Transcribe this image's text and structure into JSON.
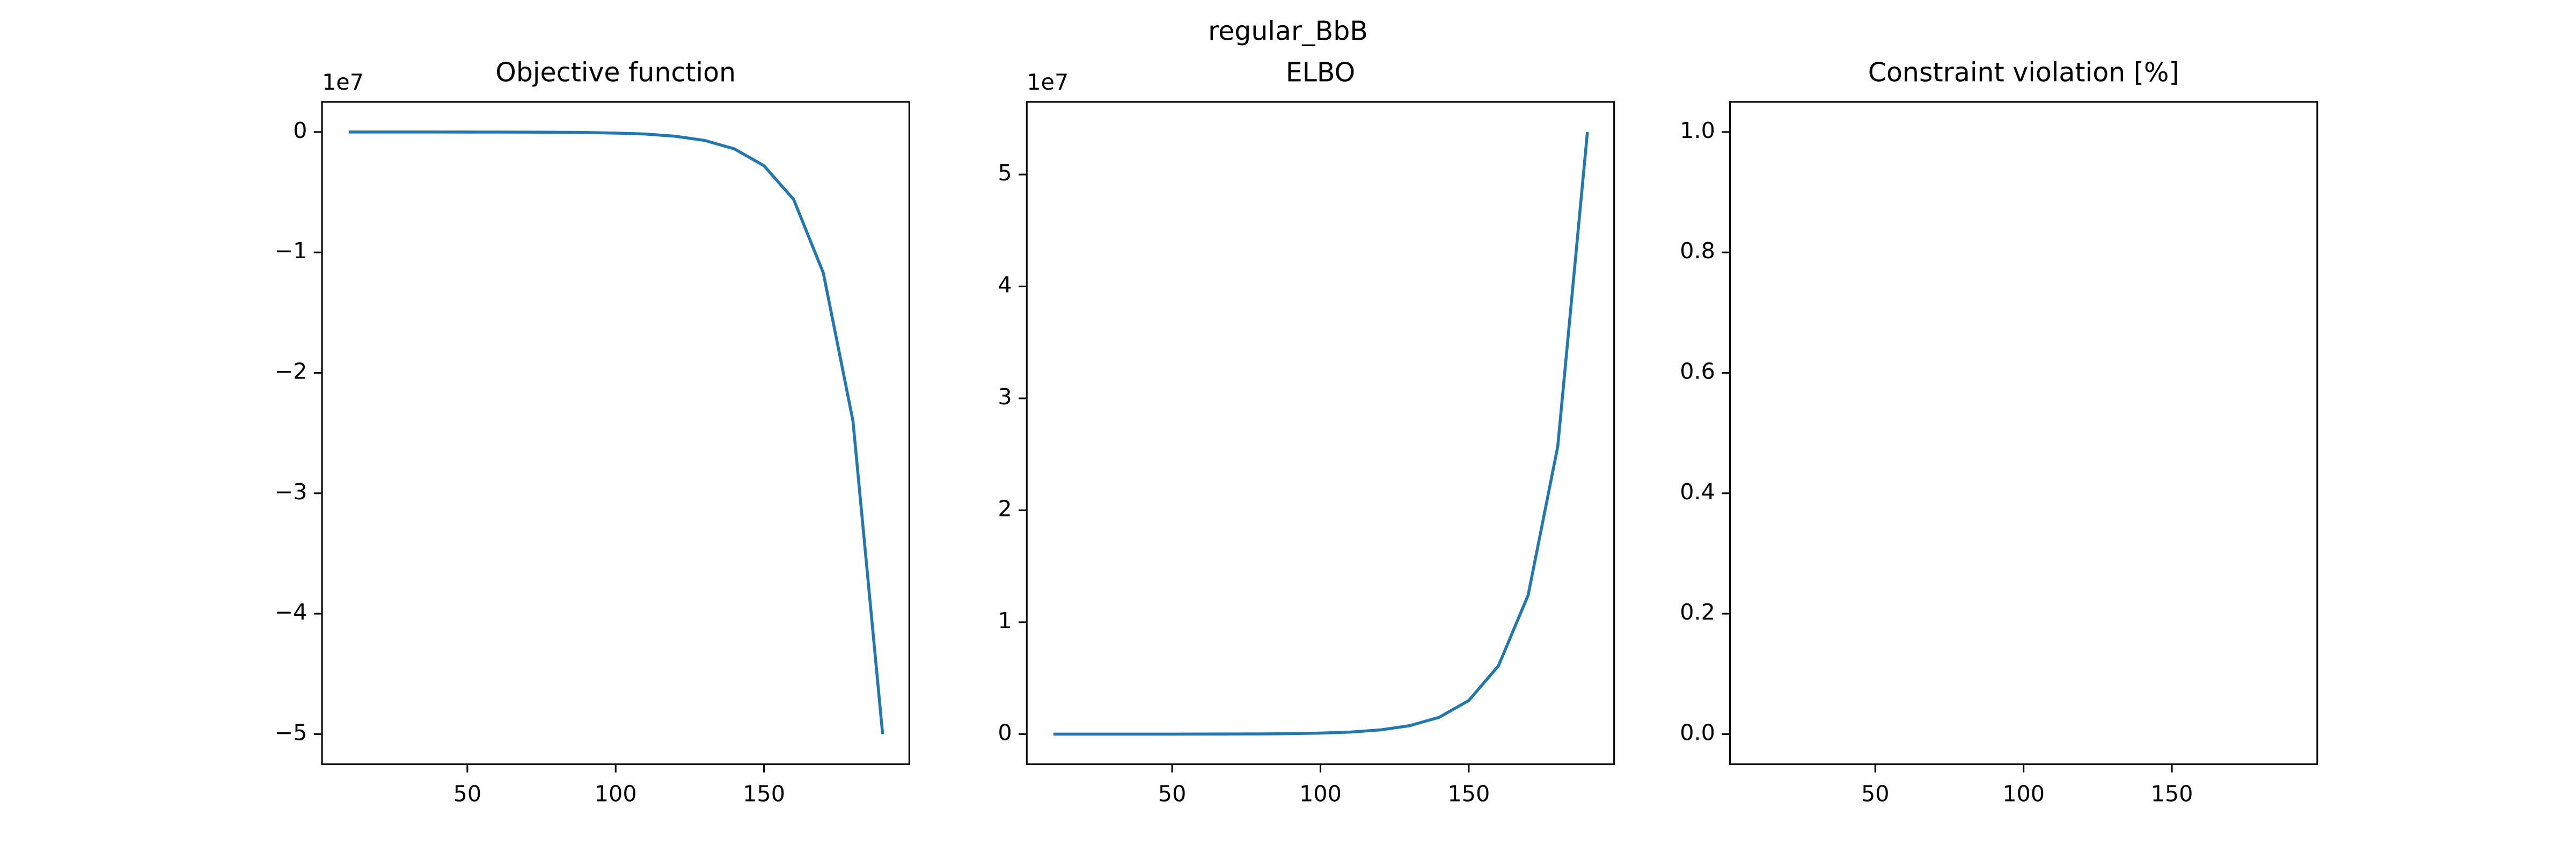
{
  "figure_title": "regular_BbB",
  "chart_data": [
    {
      "type": "line",
      "title": "Objective function",
      "y_offset_label": "1e7",
      "x": [
        10,
        20,
        30,
        40,
        50,
        60,
        70,
        80,
        90,
        100,
        110,
        120,
        130,
        140,
        150,
        160,
        170,
        180,
        190
      ],
      "series": [
        {
          "color": "#1f77b4",
          "values": [
            0,
            0,
            -0.0001,
            -0.0001,
            -0.0003,
            -0.0005,
            -0.001,
            -0.002,
            -0.004,
            -0.009,
            -0.017,
            -0.035,
            -0.07,
            -0.14,
            -0.28,
            -0.56,
            -1.17,
            -2.4,
            -5.0
          ]
        }
      ],
      "xlim": [
        1,
        199
      ],
      "xticks": [
        50,
        100,
        150
      ],
      "ylim": [
        -5.25,
        0.25
      ],
      "yticks": [
        {
          "value": -5,
          "label": "−5"
        },
        {
          "value": -4,
          "label": "−4"
        },
        {
          "value": -3,
          "label": "−3"
        },
        {
          "value": -2,
          "label": "−2"
        },
        {
          "value": -1,
          "label": "−1"
        },
        0
      ]
    },
    {
      "type": "line",
      "title": "ELBO",
      "y_offset_label": "1e7",
      "x": [
        10,
        20,
        30,
        40,
        50,
        60,
        70,
        80,
        90,
        100,
        110,
        120,
        130,
        140,
        150,
        160,
        170,
        180,
        190
      ],
      "series": [
        {
          "color": "#1f77b4",
          "values": [
            0,
            0,
            0.0001,
            0.0001,
            0.0003,
            0.0005,
            0.001,
            0.002,
            0.0045,
            0.009,
            0.018,
            0.037,
            0.075,
            0.15,
            0.3,
            0.61,
            1.24,
            2.57,
            5.38
          ]
        }
      ],
      "xlim": [
        1,
        199
      ],
      "xticks": [
        50,
        100,
        150
      ],
      "ylim": [
        -0.269,
        5.649
      ],
      "yticks": [
        0,
        1,
        2,
        3,
        4,
        5
      ]
    },
    {
      "type": "line",
      "title": "Constraint violation [%]",
      "x": [],
      "series": [],
      "xlim": [
        1,
        199
      ],
      "xticks": [
        50,
        100,
        150
      ],
      "ylim": [
        -0.05,
        1.05
      ],
      "yticks": [
        {
          "value": 0,
          "label": "0.0"
        },
        {
          "value": 0.2,
          "label": "0.2"
        },
        {
          "value": 0.4,
          "label": "0.4"
        },
        {
          "value": 0.6,
          "label": "0.6"
        },
        {
          "value": 0.8,
          "label": "0.8"
        },
        {
          "value": 1,
          "label": "1.0"
        }
      ]
    }
  ]
}
